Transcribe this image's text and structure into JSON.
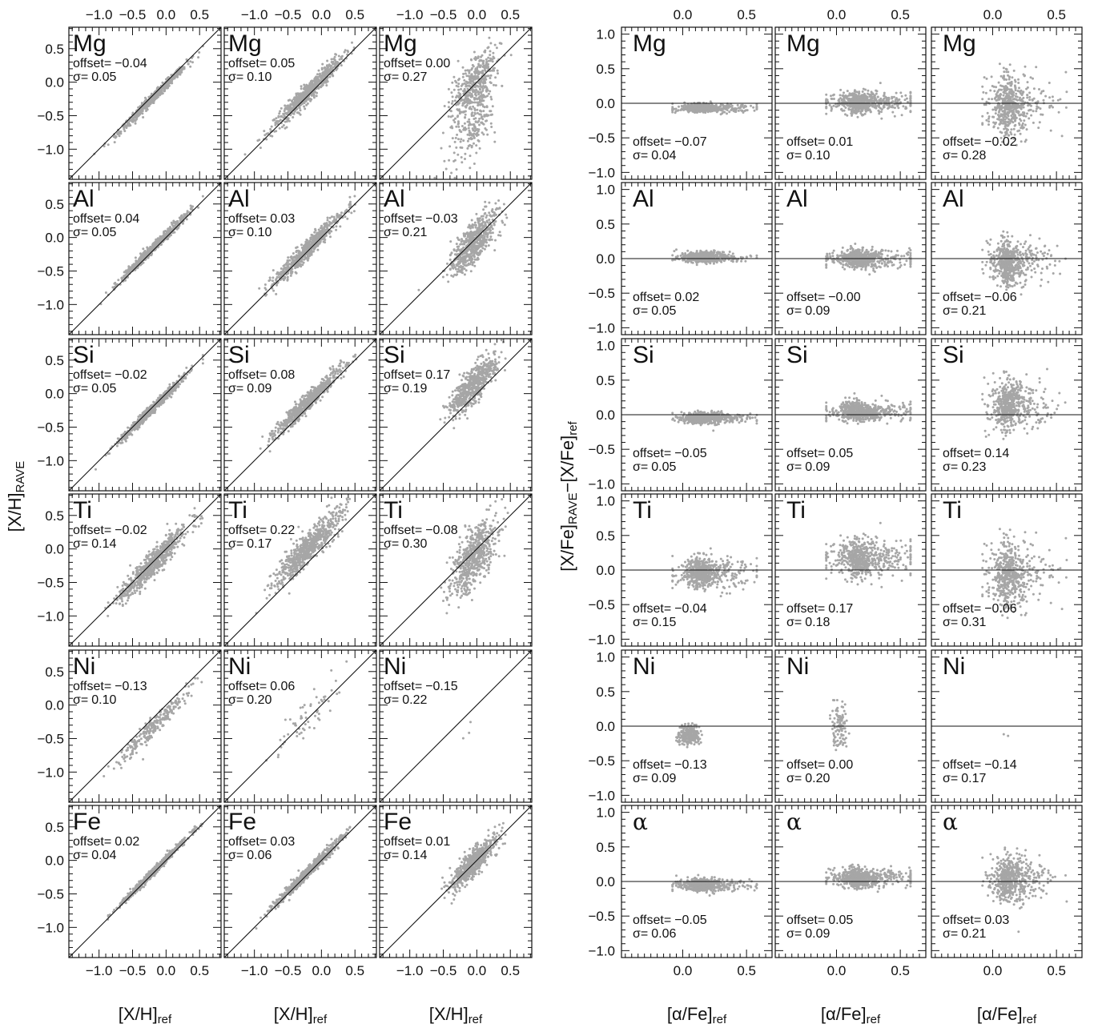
{
  "chart_data": {
    "type": "scatter",
    "left_block": {
      "xlim": [
        -1.45,
        0.82
      ],
      "ylim": [
        -1.45,
        0.82
      ],
      "x_ticks": [
        -1.0,
        -0.5,
        0.0,
        0.5
      ],
      "y_ticks": [
        -1.0,
        -0.5,
        0.0,
        0.5
      ],
      "x_tick_labels": [
        "−1.0",
        "−0.5",
        "0.0",
        "0.5"
      ],
      "y_tick_labels": [
        "−1.0",
        "−0.5",
        "0.0",
        "0.5"
      ],
      "reference_line": "one-to-one",
      "ylabel_main": "[X/H]",
      "ylabel_sub": "RAVE",
      "xlabel_main": "[X/H]",
      "xlabel_sub": "ref"
    },
    "right_block": {
      "xlim": [
        -0.48,
        0.7
      ],
      "ylim": [
        -1.1,
        1.1
      ],
      "x_ticks": [
        0.0,
        0.5
      ],
      "y_ticks": [
        -1.0,
        -0.5,
        0.0,
        0.5,
        1.0
      ],
      "x_tick_labels": [
        "0.0",
        "0.5"
      ],
      "y_tick_labels": [
        "−1.0",
        "−0.5",
        "0.0",
        "0.5",
        "1.0"
      ],
      "reference_line": "zero",
      "ylabel_main": "[X/Fe]",
      "ylabel_sub1": "RAVE",
      "ylabel_mid": "−[X/Fe]",
      "ylabel_sub2": "ref",
      "xlabel_main": "[α/Fe]",
      "xlabel_sub": "ref"
    },
    "offset_prefix": "offset=",
    "sigma_prefix": "σ=",
    "rows": [
      {
        "element": "Mg",
        "left": [
          {
            "offset": "−0.04",
            "sigma": "0.05"
          },
          {
            "offset": "0.05",
            "sigma": "0.10"
          },
          {
            "offset": "0.00",
            "sigma": "0.27"
          }
        ],
        "right": [
          {
            "offset": "−0.07",
            "sigma": "0.04"
          },
          {
            "offset": "0.01",
            "sigma": "0.10"
          },
          {
            "offset": "−0.02",
            "sigma": "0.28"
          }
        ]
      },
      {
        "element": "Al",
        "left": [
          {
            "offset": "0.04",
            "sigma": "0.05"
          },
          {
            "offset": "0.03",
            "sigma": "0.10"
          },
          {
            "offset": "−0.03",
            "sigma": "0.21"
          }
        ],
        "right": [
          {
            "offset": "0.02",
            "sigma": "0.05"
          },
          {
            "offset": "−0.00",
            "sigma": "0.09"
          },
          {
            "offset": "−0.06",
            "sigma": "0.21"
          }
        ]
      },
      {
        "element": "Si",
        "left": [
          {
            "offset": "−0.02",
            "sigma": "0.05"
          },
          {
            "offset": "0.08",
            "sigma": "0.09"
          },
          {
            "offset": "0.17",
            "sigma": "0.19"
          }
        ],
        "right": [
          {
            "offset": "−0.05",
            "sigma": "0.05"
          },
          {
            "offset": "0.05",
            "sigma": "0.09"
          },
          {
            "offset": "0.14",
            "sigma": "0.23"
          }
        ]
      },
      {
        "element": "Ti",
        "left": [
          {
            "offset": "−0.02",
            "sigma": "0.14"
          },
          {
            "offset": "0.22",
            "sigma": "0.17"
          },
          {
            "offset": "−0.08",
            "sigma": "0.30"
          }
        ],
        "right": [
          {
            "offset": "−0.04",
            "sigma": "0.15"
          },
          {
            "offset": "0.17",
            "sigma": "0.18"
          },
          {
            "offset": "−0.06",
            "sigma": "0.31"
          }
        ]
      },
      {
        "element": "Ni",
        "left": [
          {
            "offset": "−0.13",
            "sigma": "0.10"
          },
          {
            "offset": "0.06",
            "sigma": "0.20"
          },
          {
            "offset": "−0.15",
            "sigma": "0.22"
          }
        ],
        "right": [
          {
            "offset": "−0.13",
            "sigma": "0.09"
          },
          {
            "offset": "0.00",
            "sigma": "0.20"
          },
          {
            "offset": "−0.14",
            "sigma": "0.17"
          }
        ]
      },
      {
        "element": "Fe",
        "left": [
          {
            "offset": "0.02",
            "sigma": "0.04"
          },
          {
            "offset": "0.03",
            "sigma": "0.06"
          },
          {
            "offset": "0.01",
            "sigma": "0.14"
          }
        ],
        "right": null
      },
      {
        "element": "α",
        "left": null,
        "right": [
          {
            "offset": "−0.05",
            "sigma": "0.06"
          },
          {
            "offset": "0.05",
            "sigma": "0.09"
          },
          {
            "offset": "0.03",
            "sigma": "0.21"
          }
        ]
      }
    ],
    "point_color": "#a6a6a6",
    "line_color": "#111111"
  }
}
